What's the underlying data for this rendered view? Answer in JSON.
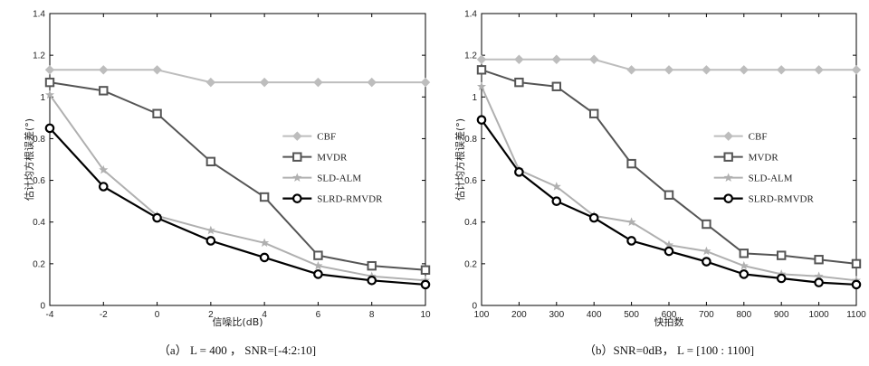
{
  "chart_data": [
    {
      "type": "line",
      "caption": "（a） L = 400 ， SNR=[-4:2:10]",
      "xlabel": "信噪比(dB)",
      "ylabel": "估计均方根误差(°)",
      "xlim": [
        -4,
        10
      ],
      "ylim": [
        0,
        1.4
      ],
      "xticks": [
        "-4",
        "-2",
        "0",
        "2",
        "4",
        "6",
        "8",
        "10"
      ],
      "yticks": [
        "0",
        "0.2",
        "0.4",
        "0.6",
        "0.8",
        "1",
        "1.2",
        "1.4"
      ],
      "legend_position": "right",
      "x": [
        -4,
        -2,
        0,
        2,
        4,
        6,
        8,
        10
      ],
      "series": [
        {
          "name": "CBF",
          "color": "#bdbdbd",
          "marker": "diamond",
          "values": [
            1.13,
            1.13,
            1.13,
            1.07,
            1.07,
            1.07,
            1.07,
            1.07
          ]
        },
        {
          "name": "MVDR",
          "color": "#555555",
          "marker": "square",
          "values": [
            1.07,
            1.03,
            0.92,
            0.69,
            0.52,
            0.24,
            0.19,
            0.17
          ]
        },
        {
          "name": "SLD-ALM",
          "color": "#b0b0b0",
          "marker": "star",
          "values": [
            1.01,
            0.65,
            0.43,
            0.36,
            0.3,
            0.19,
            0.14,
            0.12
          ]
        },
        {
          "name": "SLRD-RMVDR",
          "color": "#000000",
          "marker": "circle",
          "values": [
            0.85,
            0.57,
            0.42,
            0.31,
            0.23,
            0.15,
            0.12,
            0.1
          ]
        }
      ]
    },
    {
      "type": "line",
      "caption": "（b）SNR=0dB， L = [100 : 1100]",
      "xlabel": "快拍数",
      "ylabel": "估计均方根误差(°)",
      "xlim": [
        100,
        1100
      ],
      "ylim": [
        0,
        1.4
      ],
      "xticks": [
        "100",
        "200",
        "300",
        "400",
        "500",
        "600",
        "700",
        "800",
        "900",
        "1000",
        "1100"
      ],
      "yticks": [
        "0",
        "0.2",
        "0.4",
        "0.6",
        "0.8",
        "1",
        "1.2",
        "1.4"
      ],
      "legend_position": "right",
      "x": [
        100,
        200,
        300,
        400,
        500,
        600,
        700,
        800,
        900,
        1000,
        1100
      ],
      "series": [
        {
          "name": "CBF",
          "color": "#bdbdbd",
          "marker": "diamond",
          "values": [
            1.18,
            1.18,
            1.18,
            1.18,
            1.13,
            1.13,
            1.13,
            1.13,
            1.13,
            1.13,
            1.13
          ]
        },
        {
          "name": "MVDR",
          "color": "#555555",
          "marker": "square",
          "values": [
            1.13,
            1.07,
            1.05,
            0.92,
            0.68,
            0.53,
            0.39,
            0.25,
            0.24,
            0.22,
            0.2
          ]
        },
        {
          "name": "SLD-ALM",
          "color": "#b0b0b0",
          "marker": "star",
          "values": [
            1.05,
            0.65,
            0.57,
            0.43,
            0.4,
            0.29,
            0.26,
            0.19,
            0.15,
            0.14,
            0.12
          ]
        },
        {
          "name": "SLRD-RMVDR",
          "color": "#000000",
          "marker": "circle",
          "values": [
            0.89,
            0.64,
            0.5,
            0.42,
            0.31,
            0.26,
            0.21,
            0.15,
            0.13,
            0.11,
            0.1
          ]
        }
      ]
    }
  ]
}
